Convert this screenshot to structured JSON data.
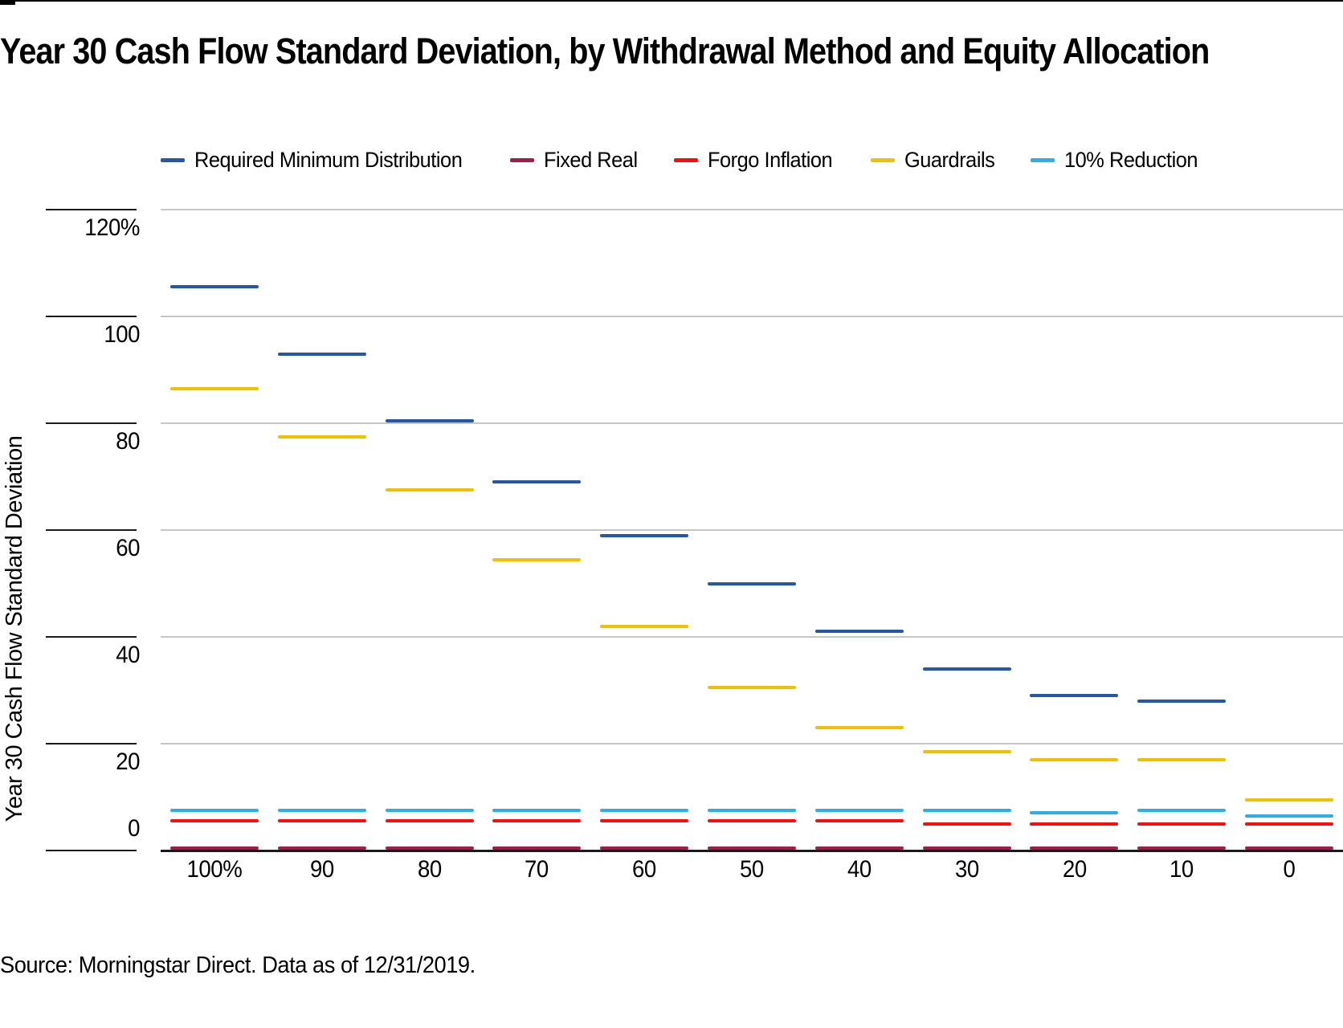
{
  "page": {
    "title": "Year 30 Cash Flow Standard Deviation, by Withdrawal Method and Equity Allocation",
    "source": "Source: Morningstar Direct. Data as of 12/31/2019."
  },
  "colors": {
    "rmd_blue": "#2457a5",
    "fixed_real_crimson": "#a11d45",
    "forgo_inflation_red": "#fa0d0d",
    "guardrails_yellow": "#efc100",
    "reduction_cyan": "#29b1e6",
    "gridline_gray": "#c6c6c6",
    "axis_dark": "#1a1a1a"
  },
  "chart_data": {
    "type": "scatter",
    "marker": "horizontal-dash-segment",
    "title": "Year 30 Cash Flow Standard Deviation, by Withdrawal Method and Equity Allocation",
    "xlabel": "",
    "ylabel": "Year 30 Cash Flow Standard Deviation",
    "categories": [
      "100%",
      "90",
      "80",
      "70",
      "60",
      "50",
      "40",
      "30",
      "20",
      "10",
      "0"
    ],
    "y_ticks": [
      "120%",
      "100",
      "80",
      "60",
      "40",
      "20",
      "0"
    ],
    "y_tick_values": [
      120,
      100,
      80,
      60,
      40,
      20,
      0
    ],
    "ylim": [
      0,
      130
    ],
    "grid": "horizontal",
    "legend_position": "top",
    "series": [
      {
        "name": "Required Minimum Distribution",
        "color": "#2457a5",
        "values": [
          105.5,
          93,
          80.5,
          69,
          59,
          50,
          41,
          34,
          29,
          28,
          null
        ]
      },
      {
        "name": "Fixed Real",
        "color": "#a11d45",
        "values": [
          0.5,
          0.5,
          0.5,
          0.5,
          0.5,
          0.5,
          0.5,
          0.5,
          0.5,
          0.5,
          0.5
        ]
      },
      {
        "name": "Forgo Inflation",
        "color": "#fa0d0d",
        "values": [
          5.5,
          5.5,
          5.5,
          5.5,
          5.5,
          5.5,
          5.5,
          5,
          5,
          5,
          5
        ]
      },
      {
        "name": "Guardrails",
        "color": "#efc100",
        "values": [
          86.5,
          77.5,
          67.5,
          54.5,
          42,
          30.5,
          23,
          18.5,
          17,
          17,
          9.5
        ]
      },
      {
        "name": "10% Reduction",
        "color": "#29b1e6",
        "values": [
          7.5,
          7.5,
          7.5,
          7.5,
          7.5,
          7.5,
          7.5,
          7.5,
          7,
          7.5,
          6.5
        ]
      }
    ]
  }
}
